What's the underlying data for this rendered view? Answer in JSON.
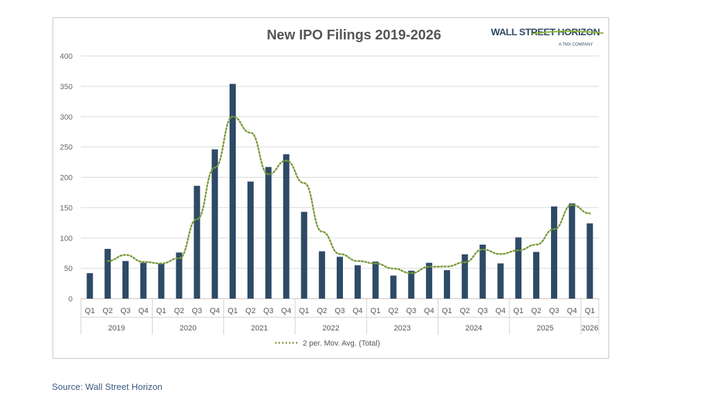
{
  "chart_data": {
    "type": "bar",
    "title": "New IPO Filings 2019-2026",
    "ylim": [
      0,
      400
    ],
    "yticks": [
      0,
      50,
      100,
      150,
      200,
      250,
      300,
      350,
      400
    ],
    "grid": true,
    "years": [
      {
        "label": "2019",
        "quarters": 4
      },
      {
        "label": "2020",
        "quarters": 4
      },
      {
        "label": "2021",
        "quarters": 4
      },
      {
        "label": "2022",
        "quarters": 4
      },
      {
        "label": "2023",
        "quarters": 4
      },
      {
        "label": "2024",
        "quarters": 4
      },
      {
        "label": "2025",
        "quarters": 4
      },
      {
        "label": "2026",
        "quarters": 1
      }
    ],
    "categories": [
      "Q1",
      "Q2",
      "Q3",
      "Q4",
      "Q1",
      "Q2",
      "Q3",
      "Q4",
      "Q1",
      "Q2",
      "Q3",
      "Q4",
      "Q1",
      "Q2",
      "Q3",
      "Q4",
      "Q1",
      "Q2",
      "Q3",
      "Q4",
      "Q1",
      "Q2",
      "Q3",
      "Q4",
      "Q1",
      "Q2",
      "Q3",
      "Q4",
      "Q1"
    ],
    "values": [
      42,
      82,
      62,
      59,
      57,
      76,
      186,
      246,
      354,
      193,
      217,
      238,
      143,
      78,
      69,
      55,
      61,
      38,
      46,
      59,
      47,
      73,
      89,
      58,
      101,
      77,
      152,
      157,
      124
    ],
    "trendline": {
      "name": "2 per. Mov. Avg. (Total)",
      "type": "moving-average",
      "period": 2
    },
    "legend_position": "bottom",
    "colors": {
      "bar": "#2e4a66",
      "trend": "#7a9a3a",
      "grid": "#d9d9d9"
    }
  },
  "logo": {
    "text": "WALL STREET HORIZON",
    "subtext": "A TMX COMPANY"
  },
  "source": "Source: Wall Street Horizon"
}
